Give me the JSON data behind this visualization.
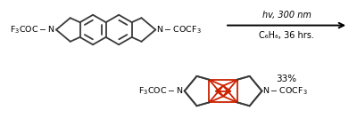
{
  "bg_color": "#ffffff",
  "structure_color": "#3a3a3a",
  "red_color": "#cc2200",
  "text_above_arrow": "hv, 300 nm",
  "text_below_arrow": "C₆H₆, 36 hrs.",
  "yield_text": "33%",
  "figsize": [
    4.0,
    1.42
  ],
  "dpi": 100
}
